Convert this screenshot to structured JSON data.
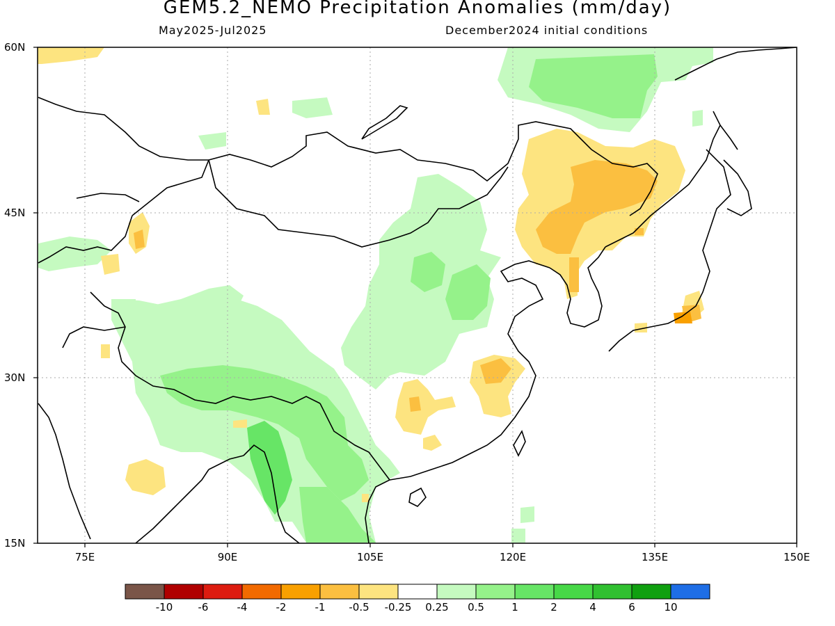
{
  "header": {
    "title": "GEM5.2_NEMO Precipitation Anomalies (mm/day)",
    "period": "May2025-Jul2025",
    "init": "December2024 initial conditions"
  },
  "axes": {
    "lat_labels": [
      "60N",
      "45N",
      "30N",
      "15N"
    ],
    "lon_labels": [
      "75E",
      "90E",
      "105E",
      "120E",
      "135E",
      "150E"
    ]
  },
  "colorbar": {
    "colors": [
      "#7a5548",
      "#b00000",
      "#dd1c10",
      "#f26a00",
      "#f9a000",
      "#fbbf40",
      "#fde480",
      "#ffffff",
      "#c5fac0",
      "#95f28a",
      "#67e566",
      "#47d847",
      "#30c030",
      "#10a010",
      "#1e6ee6"
    ],
    "labels": [
      "-10",
      "-6",
      "-4",
      "-2",
      "-1",
      "-0.5",
      "-0.25",
      "0.25",
      "0.5",
      "1",
      "2",
      "4",
      "6",
      "10"
    ]
  },
  "legend_colors": {
    "light_yellow": "#fde480",
    "yellow_orange": "#fbbf40",
    "orange": "#f9a000",
    "light_green": "#c5fac0",
    "green": "#95f28a",
    "medium_green": "#67e566"
  }
}
